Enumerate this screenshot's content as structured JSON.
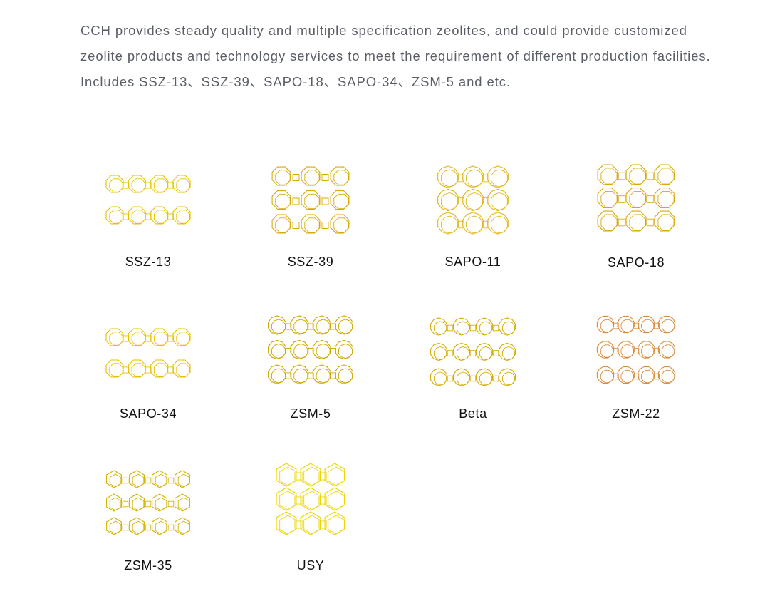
{
  "intro": {
    "text": "CCH provides steady quality and multiple specification zeolites, and could provide customized zeolite products and technology services to meet the requirement of different production facilities. Includes SSZ-13、SSZ-39、SAPO-18、SAPO-34、ZSM-5 and etc."
  },
  "products": [
    {
      "name": "SSZ-13",
      "color": "#e8c000",
      "icon": "zeolite-framework-icon"
    },
    {
      "name": "SSZ-39",
      "color": "#d9a90a",
      "icon": "zeolite-framework-icon"
    },
    {
      "name": "SAPO-11",
      "color": "#e0b81a",
      "icon": "zeolite-framework-icon"
    },
    {
      "name": "SAPO-18",
      "color": "#d9a90a",
      "icon": "zeolite-framework-icon"
    },
    {
      "name": "SAPO-34",
      "color": "#e8c000",
      "icon": "zeolite-framework-icon"
    },
    {
      "name": "ZSM-5",
      "color": "#cfa600",
      "icon": "zeolite-framework-icon"
    },
    {
      "name": "Beta",
      "color": "#d4ad00",
      "icon": "zeolite-framework-icon"
    },
    {
      "name": "ZSM-22",
      "color": "#d98a3a",
      "icon": "zeolite-framework-icon"
    },
    {
      "name": "ZSM-35",
      "color": "#d6b200",
      "icon": "zeolite-framework-icon"
    },
    {
      "name": "USY",
      "color": "#eed400",
      "icon": "zeolite-framework-icon"
    }
  ]
}
